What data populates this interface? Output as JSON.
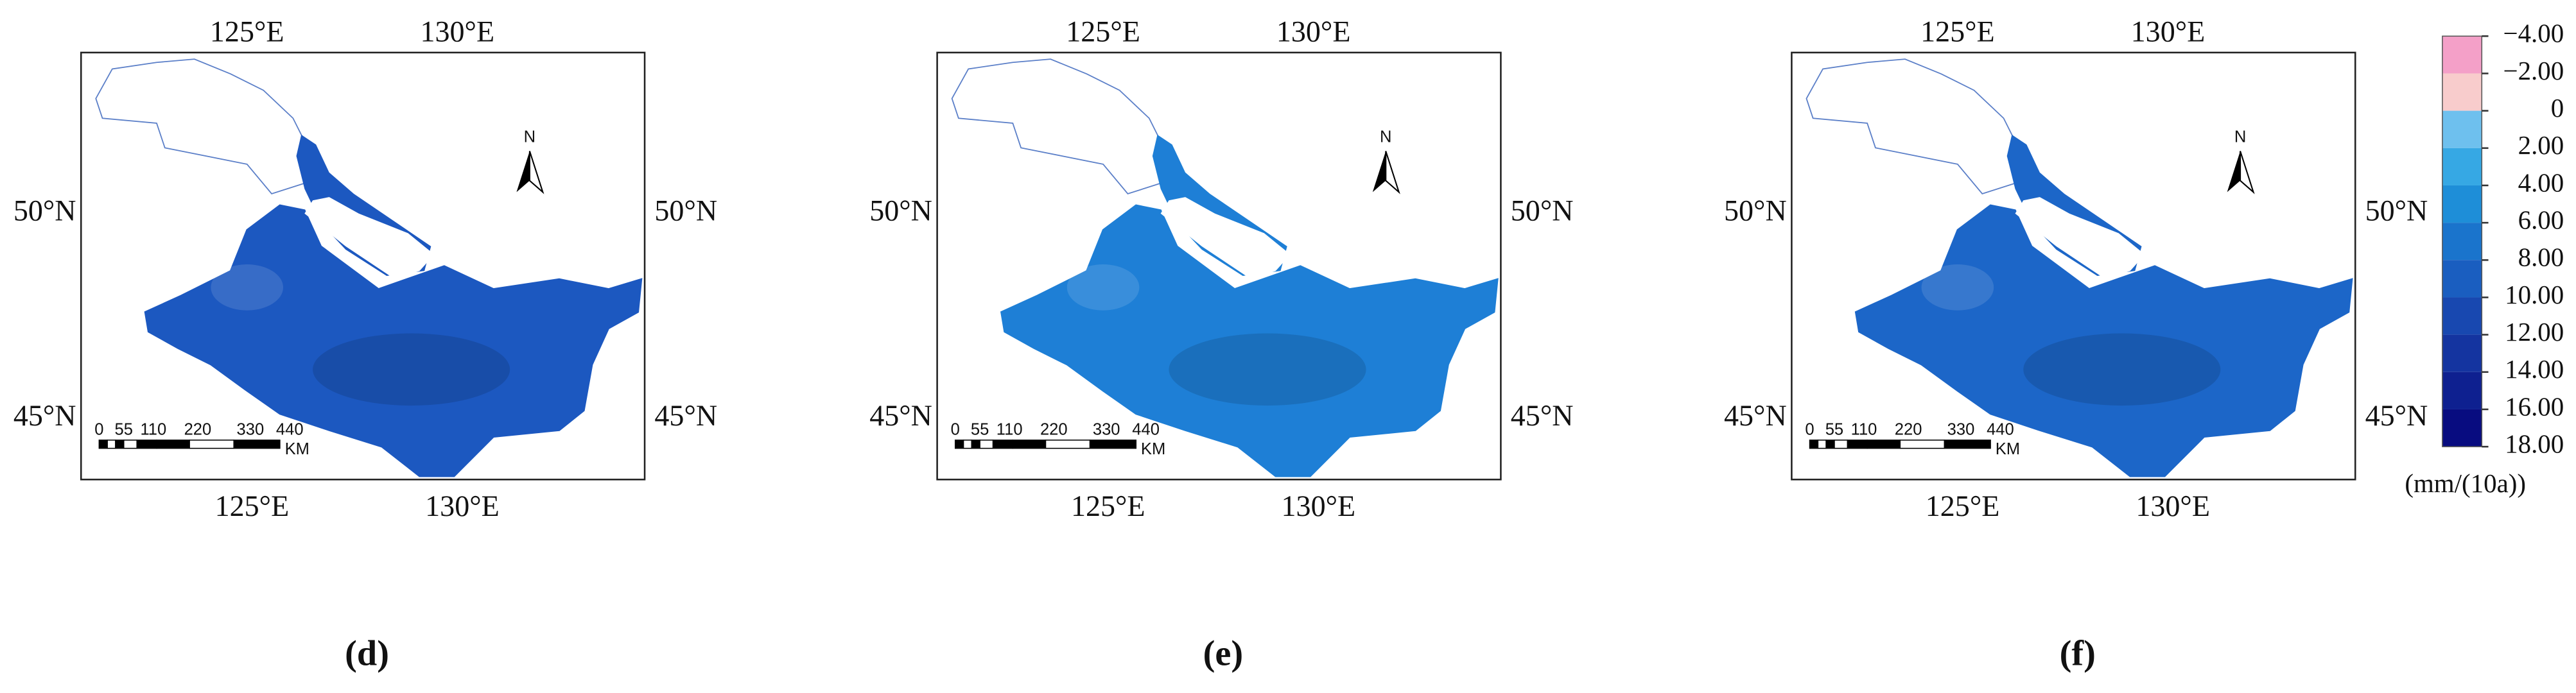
{
  "panels": [
    {
      "label": "(d)",
      "lon_ticks": [
        "125°E",
        "130°E"
      ],
      "lat_ticks": [
        "50°N",
        "45°N"
      ],
      "scale_labels": [
        "0",
        "55",
        "110",
        "220",
        "330",
        "440"
      ],
      "scale_unit": "KM",
      "north": "N",
      "color": "#1c58c0"
    },
    {
      "label": "(e)",
      "lon_ticks": [
        "125°E",
        "130°E"
      ],
      "lat_ticks": [
        "50°N",
        "45°N"
      ],
      "scale_labels": [
        "0",
        "55",
        "110",
        "220",
        "330",
        "440"
      ],
      "scale_unit": "KM",
      "north": "N",
      "color": "#1e7fd6"
    },
    {
      "label": "(f)",
      "lon_ticks": [
        "125°E",
        "130°E"
      ],
      "lat_ticks": [
        "50°N",
        "45°N"
      ],
      "scale_labels": [
        "0",
        "55",
        "110",
        "220",
        "330",
        "440"
      ],
      "scale_unit": "KM",
      "north": "N",
      "color": "#1c66c8"
    }
  ],
  "legend": {
    "labels": [
      "−4.00",
      "−2.00",
      "0",
      "2.00",
      "4.00",
      "6.00",
      "8.00",
      "10.00",
      "12.00",
      "14.00",
      "16.00",
      "18.00"
    ],
    "colors": [
      "#f4a0c8",
      "#f8cccc",
      "#6ec0ee",
      "#36a8e4",
      "#1e8ed8",
      "#1a74cc",
      "#1a5ec0",
      "#1848b0",
      "#1434a0",
      "#0e2090",
      "#080c80"
    ],
    "unit": "(mm/(10a))"
  }
}
